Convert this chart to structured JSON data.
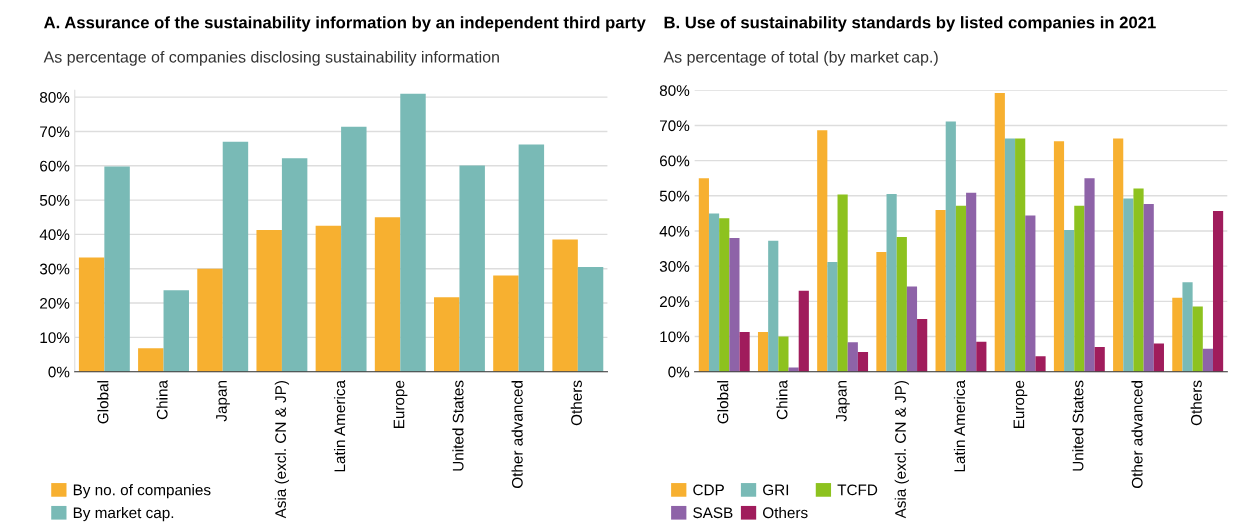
{
  "chart_data": [
    {
      "type": "bar",
      "title": "A. Assurance of the sustainability information by an independent third party",
      "subtitle": "As percentage of companies disclosing sustainability information",
      "categories": [
        "Global",
        "China",
        "Japan",
        "Asia (excl. CN & JP)",
        "Latin America",
        "Europe",
        "United States",
        "Other advanced",
        "Others"
      ],
      "series": [
        {
          "name": "By no. of companies",
          "color": "#f7b030",
          "values": [
            33.3,
            6.8,
            30,
            41.3,
            42.5,
            45,
            21.7,
            28,
            38.5
          ]
        },
        {
          "name": "By market cap.",
          "color": "#79bab6",
          "values": [
            59.8,
            23.7,
            67,
            62.2,
            71.4,
            81,
            60.1,
            66.2,
            30.5
          ]
        }
      ],
      "ylim": [
        0,
        82
      ],
      "yticks": [
        {
          "value": 0,
          "label": "0%"
        },
        {
          "value": 10,
          "label": "10%"
        },
        {
          "value": 20,
          "label": "20%"
        },
        {
          "value": 30,
          "label": "30%"
        },
        {
          "value": 40,
          "label": "40%"
        },
        {
          "value": 50,
          "label": "50%"
        },
        {
          "value": 60,
          "label": "60%"
        },
        {
          "value": 70,
          "label": "70%"
        },
        {
          "value": 80,
          "label": "80%"
        }
      ],
      "grid": "y",
      "legend": "bottom left"
    },
    {
      "type": "bar",
      "title": "B. Use of sustainability standards by listed companies in 2021",
      "subtitle": "As percentage of total (by market cap.)",
      "categories": [
        "Global",
        "China",
        "Japan",
        "Asia (excl. CN & JP)",
        "Latin America",
        "Europe",
        "United States",
        "Other advanced",
        "Others"
      ],
      "series": [
        {
          "name": "CDP",
          "color": "#f7b030",
          "values": [
            55,
            11.3,
            68.6,
            34,
            46,
            79.2,
            65.5,
            66.3,
            21
          ]
        },
        {
          "name": "GRI",
          "color": "#79bab6",
          "values": [
            45,
            37.2,
            31.2,
            50.5,
            71.1,
            66.3,
            40.3,
            49.2,
            25.4
          ]
        },
        {
          "name": "TCFD",
          "color": "#8dc21f",
          "values": [
            43.6,
            10,
            50.4,
            38.3,
            47.2,
            66.3,
            47.2,
            52.1,
            18.5
          ]
        },
        {
          "name": "SASB",
          "color": "#8e63a8",
          "values": [
            38,
            1.2,
            8.4,
            24.2,
            50.9,
            44.4,
            55,
            47.7,
            6.5
          ]
        },
        {
          "name": "Others",
          "color": "#a01c5c",
          "values": [
            11.3,
            23,
            5.6,
            15,
            8.5,
            4.4,
            7,
            8,
            45.7
          ]
        }
      ],
      "ylim": [
        0,
        80
      ],
      "yticks": [
        {
          "value": 0,
          "label": "0%"
        },
        {
          "value": 10,
          "label": "10%"
        },
        {
          "value": 20,
          "label": "20%"
        },
        {
          "value": 30,
          "label": "30%"
        },
        {
          "value": 40,
          "label": "40%"
        },
        {
          "value": 50,
          "label": "50%"
        },
        {
          "value": 60,
          "label": "60%"
        },
        {
          "value": 70,
          "label": "70%"
        },
        {
          "value": 80,
          "label": "80%"
        }
      ],
      "grid": "y",
      "legend": "bottom left"
    }
  ]
}
